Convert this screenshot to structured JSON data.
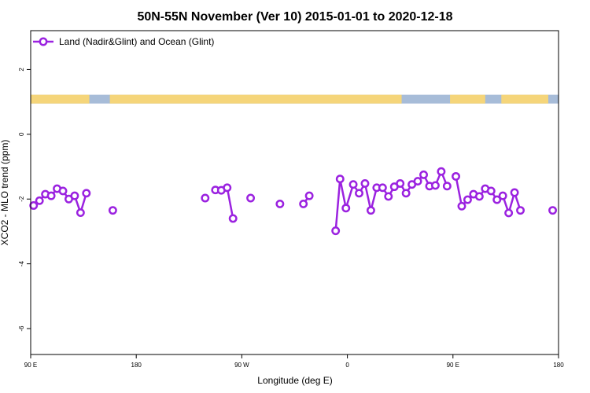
{
  "chart_data": {
    "type": "line",
    "title": "50N-55N November (Ver 10)   2015-01-01 to 2020-12-18",
    "xlabel": "Longitude (deg E)",
    "ylabel": "XCO2 - MLO trend (ppm)",
    "xlim": [
      90,
      270
    ],
    "ylim": [
      -6.8,
      3.2
    ],
    "x_ticks": [
      {
        "value": 90,
        "label": "90 E"
      },
      {
        "value": 126,
        "label": "180"
      },
      {
        "value": 162,
        "label": "90 W"
      },
      {
        "value": 198,
        "label": "0"
      },
      {
        "value": 234,
        "label": "90 E"
      },
      {
        "value": 270,
        "label": "180"
      }
    ],
    "y_ticks": [
      {
        "value": 2,
        "label": "2"
      },
      {
        "value": 0,
        "label": "0"
      },
      {
        "value": -2,
        "label": "-2"
      },
      {
        "value": -4,
        "label": "-4"
      },
      {
        "value": -6,
        "label": "-6"
      }
    ],
    "grid": false,
    "legend_position": "top-left",
    "land_ocean_band": {
      "y_range": [
        0.95,
        1.22
      ],
      "land_color": "#f5d57a",
      "ocean_color": "#a7bcd8",
      "land_spans": [
        [
          90,
          110
        ],
        [
          117,
          216.5
        ],
        [
          233,
          245
        ],
        [
          250.5,
          266.5
        ]
      ]
    },
    "series": [
      {
        "name": "Land (Nadir&Glint) and Ocean (Glint)",
        "color": "#9b22e0",
        "segments": [
          {
            "x": [
              91,
              93,
              95,
              97,
              99,
              101,
              103,
              105,
              107,
              109
            ],
            "y": [
              -2.2,
              -2.05,
              -1.85,
              -1.9,
              -1.68,
              -1.75,
              -2.0,
              -1.9,
              -2.42,
              -1.82
            ]
          },
          {
            "x": [
              118
            ],
            "y": [
              -2.35
            ]
          },
          {
            "x": [
              149.5
            ],
            "y": [
              -1.97
            ]
          },
          {
            "x": [
              153,
              155,
              157,
              159
            ],
            "y": [
              -1.72,
              -1.73,
              -1.65,
              -2.6
            ]
          },
          {
            "x": [
              165
            ],
            "y": [
              -1.97
            ]
          },
          {
            "x": [
              175
            ],
            "y": [
              -2.15
            ]
          },
          {
            "x": [
              183,
              185
            ],
            "y": [
              -2.15,
              -1.9
            ]
          },
          {
            "x": [
              194,
              195.5,
              197.5,
              200,
              202,
              204,
              206,
              208,
              210,
              212,
              214,
              216,
              218,
              220,
              222,
              224,
              226,
              228,
              230,
              232
            ],
            "y": [
              -2.98,
              -1.38,
              -2.28,
              -1.55,
              -1.82,
              -1.52,
              -2.35,
              -1.65,
              -1.65,
              -1.92,
              -1.62,
              -1.52,
              -1.82,
              -1.55,
              -1.45,
              -1.25,
              -1.6,
              -1.58,
              -1.15,
              -1.6
            ]
          },
          {
            "x": [
              235,
              237,
              239,
              241,
              243,
              245,
              247,
              249,
              251,
              253,
              255,
              257
            ],
            "y": [
              -1.3,
              -2.22,
              -2.02,
              -1.85,
              -1.92,
              -1.68,
              -1.75,
              -2.02,
              -1.9,
              -2.43,
              -1.8,
              -2.35
            ]
          },
          {
            "x": [
              268
            ],
            "y": [
              -2.35
            ]
          }
        ]
      }
    ]
  }
}
